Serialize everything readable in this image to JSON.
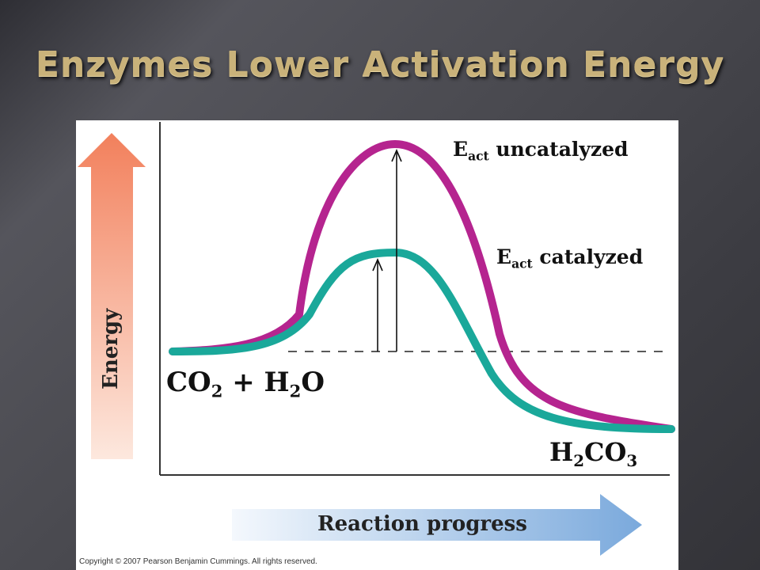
{
  "slide": {
    "title": "Enzymes Lower Activation Energy"
  },
  "diagram": {
    "uncatalyzed_label_main": "E",
    "uncatalyzed_label_sub": "act",
    "uncatalyzed_label_rest": " uncatalyzed",
    "catalyzed_label_main": "E",
    "catalyzed_label_sub": "act",
    "catalyzed_label_rest": " catalyzed",
    "reactants": {
      "co": "CO",
      "co_sub": "2",
      "plus": " + H",
      "h_sub": "2",
      "o": "O"
    },
    "product": {
      "h": "H",
      "h_sub": "2",
      "co": "CO",
      "co_sub": "3"
    },
    "y_axis_label": "Energy",
    "x_axis_label": "Reaction progress",
    "copyright": "Copyright © 2007 Pearson Benjamin Cummings. All rights reserved.",
    "colors": {
      "uncatalyzed_curve": "#b5248f",
      "catalyzed_curve": "#1aa89a",
      "energy_arrow_top": "#f2805c",
      "energy_arrow_bottom": "#fde8de",
      "progress_arrow_start": "#f4f8fd",
      "progress_arrow_end": "#7aa9dc"
    }
  }
}
